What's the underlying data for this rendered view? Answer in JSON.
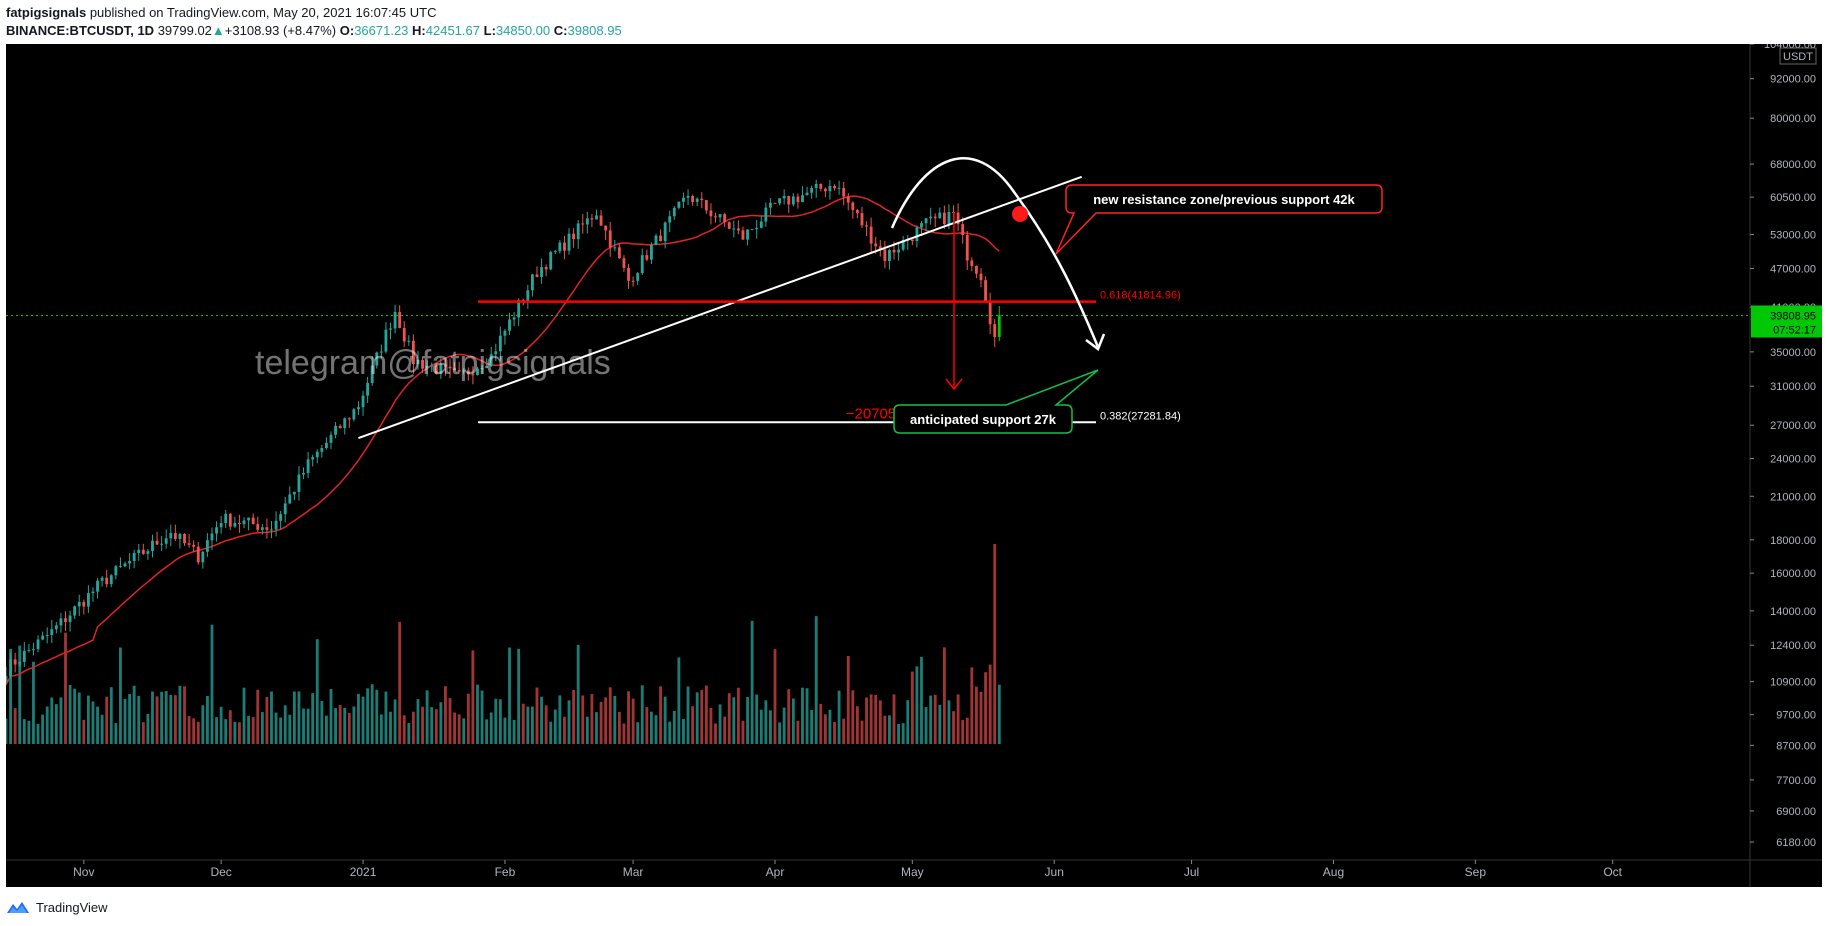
{
  "header": {
    "author": "fatpigsignals",
    "published": "published on TradingView.com, May 20, 2021 16:07:45 UTC",
    "symbol": "BINANCE:BTCUSDT, 1D",
    "last": "39799.02",
    "change_arrow": "▲",
    "change": "+3108.93 (+8.47%)",
    "o_label": "O:",
    "o_value": "36671.23",
    "h_label": "H:",
    "h_value": "42451.67",
    "l_label": "L:",
    "l_value": "34850.00",
    "c_label": "C:",
    "c_value": "39808.95"
  },
  "footer": {
    "brand": "TradingView",
    "logo_icon": "tradingview-logo-icon"
  },
  "chart_data": {
    "type": "candlestick",
    "scale": "log",
    "currency": "USDT",
    "x_range": [
      "2020-10-15",
      "2021-10-31"
    ],
    "y_range": [
      5800,
      104000
    ],
    "y_ticks": [
      104000,
      92000,
      80000,
      68000,
      60500,
      53000,
      47000,
      41000,
      35000,
      31000,
      27000,
      24000,
      21000,
      18000,
      16000,
      14000,
      12400,
      10900,
      9700,
      8700,
      7700,
      6900,
      6180
    ],
    "y_tick_labels": [
      "104000.00",
      "92000.00",
      "80000.00",
      "68000.00",
      "60500.00",
      "53000.00",
      "47000.00",
      "41000.00",
      "35000.00",
      "31000.00",
      "27000.00",
      "24000.00",
      "21000.00",
      "18000.00",
      "16000.00",
      "14000.00",
      "12400.00",
      "10900.00",
      "9700.00",
      "8700.00",
      "7700.00",
      "6900.00",
      "6180.00"
    ],
    "x_ticks": [
      {
        "date": "2020-11-01",
        "label": "Nov"
      },
      {
        "date": "2020-12-01",
        "label": "Dec"
      },
      {
        "date": "2021-01-01",
        "label": "2021"
      },
      {
        "date": "2021-02-01",
        "label": "Feb"
      },
      {
        "date": "2021-03-01",
        "label": "Mar"
      },
      {
        "date": "2021-04-01",
        "label": "Apr"
      },
      {
        "date": "2021-05-01",
        "label": "May"
      },
      {
        "date": "2021-06-01",
        "label": "Jun"
      },
      {
        "date": "2021-07-01",
        "label": "Jul"
      },
      {
        "date": "2021-08-01",
        "label": "Aug"
      },
      {
        "date": "2021-09-01",
        "label": "Sep"
      },
      {
        "date": "2021-10-01",
        "label": "Oct"
      }
    ],
    "price_path": [
      {
        "date": "2020-10-15",
        "close": 11400
      },
      {
        "date": "2020-10-25",
        "close": 13000
      },
      {
        "date": "2020-11-05",
        "close": 15500
      },
      {
        "date": "2020-11-20",
        "close": 18500
      },
      {
        "date": "2020-11-26",
        "close": 17000
      },
      {
        "date": "2020-12-01",
        "close": 19400
      },
      {
        "date": "2020-12-12",
        "close": 18800
      },
      {
        "date": "2020-12-20",
        "close": 23500
      },
      {
        "date": "2020-12-31",
        "close": 29000
      },
      {
        "date": "2021-01-08",
        "close": 40500
      },
      {
        "date": "2021-01-12",
        "close": 34000
      },
      {
        "date": "2021-01-22",
        "close": 32000
      },
      {
        "date": "2021-01-29",
        "close": 34500
      },
      {
        "date": "2021-02-08",
        "close": 46500
      },
      {
        "date": "2021-02-21",
        "close": 57500
      },
      {
        "date": "2021-02-28",
        "close": 45000
      },
      {
        "date": "2021-03-13",
        "close": 61000
      },
      {
        "date": "2021-03-25",
        "close": 52500
      },
      {
        "date": "2021-04-01",
        "close": 58800
      },
      {
        "date": "2021-04-14",
        "close": 63500
      },
      {
        "date": "2021-04-25",
        "close": 49000
      },
      {
        "date": "2021-05-04",
        "close": 55000
      },
      {
        "date": "2021-05-10",
        "close": 57000
      },
      {
        "date": "2021-05-13",
        "close": 49500
      },
      {
        "date": "2021-05-16",
        "close": 46000
      },
      {
        "date": "2021-05-19",
        "close": 36700
      },
      {
        "date": "2021-05-20",
        "close": 39808.95
      }
    ],
    "last_price": 39808.95,
    "last_price_label": "39808.95",
    "countdown_label": "07:52:17",
    "annotations": {
      "watermark": "telegram@fatpigsignals",
      "resistance_callout": "new resistance zone/previous support 42k",
      "support_callout": "anticipated support 27k",
      "fib_618_label": "0.618(41814.96)",
      "fib_618_value": 41814.96,
      "fib_382_label": "0.382(27281.84)",
      "fib_382_value": 27281.84,
      "measure_label": "−20705.69 (−40.29%) −2070569",
      "trendline_start": {
        "date": "2020-12-31",
        "value": 25800
      },
      "trendline_end": {
        "date": "2021-06-07",
        "value": 65000
      }
    },
    "colors": {
      "background": "#000000",
      "up": "#26a69a",
      "down": "#ef5350",
      "bright_up": "#00c805",
      "ma": "#e02424",
      "fib_red": "#ff0000",
      "annotation": "#ffffff",
      "support_callout_border": "#11c04a",
      "resistance_callout_border": "#ff2222"
    }
  }
}
